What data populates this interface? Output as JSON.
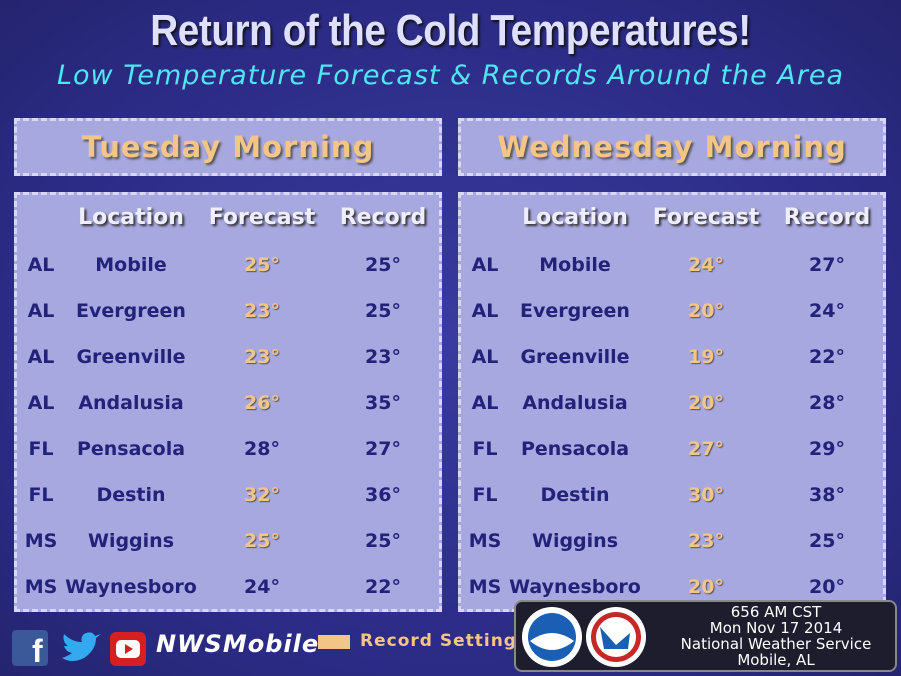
{
  "header": {
    "title": "Return of the Cold Temperatures!",
    "subtitle": "Low Temperature Forecast & Records Around the Area"
  },
  "columns": [
    "Location",
    "Forecast",
    "Record"
  ],
  "panels": [
    {
      "title": "Tuesday Morning",
      "rows": [
        [
          "AL",
          "Mobile",
          "25°",
          "25°"
        ],
        [
          "AL",
          "Evergreen",
          "23°",
          "25°"
        ],
        [
          "AL",
          "Greenville",
          "23°",
          "23°"
        ],
        [
          "AL",
          "Andalusia",
          "26°",
          "35°"
        ],
        [
          "FL",
          "Pensacola",
          "28°",
          "27°"
        ],
        [
          "FL",
          "Destin",
          "32°",
          "36°"
        ],
        [
          "MS",
          "Wiggins",
          "25°",
          "25°"
        ],
        [
          "MS",
          "Waynesboro",
          "24°",
          "22°"
        ]
      ],
      "record_setting": [
        true,
        true,
        true,
        true,
        false,
        true,
        true,
        false
      ]
    },
    {
      "title": "Wednesday Morning",
      "rows": [
        [
          "AL",
          "Mobile",
          "24°",
          "27°"
        ],
        [
          "AL",
          "Evergreen",
          "20°",
          "24°"
        ],
        [
          "AL",
          "Greenville",
          "19°",
          "22°"
        ],
        [
          "AL",
          "Andalusia",
          "20°",
          "28°"
        ],
        [
          "FL",
          "Pensacola",
          "27°",
          "29°"
        ],
        [
          "FL",
          "Destin",
          "30°",
          "38°"
        ],
        [
          "MS",
          "Wiggins",
          "23°",
          "25°"
        ],
        [
          "MS",
          "Waynesboro",
          "20°",
          "20°"
        ]
      ],
      "record_setting": [
        true,
        true,
        true,
        true,
        true,
        true,
        true,
        true
      ]
    }
  ],
  "footer": {
    "handle": "NWSMobile",
    "legend": "Record Setting"
  },
  "info": [
    "656 AM CST",
    "Mon Nov 17 2014",
    "National Weather Service",
    "Mobile, AL"
  ]
}
